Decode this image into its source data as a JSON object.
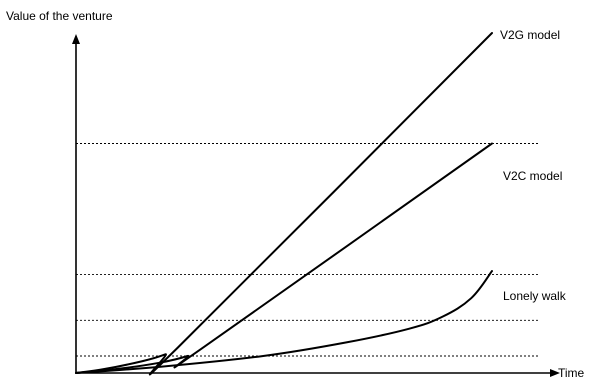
{
  "chart_data": {
    "type": "line",
    "title": "",
    "ylabel": "Value of the venture",
    "xlabel": "Time",
    "colors": {
      "line": "#000000",
      "grid": "#000000",
      "background": "#ffffff"
    },
    "reference_lines": [
      {
        "style": "dotted",
        "y": 0.05
      },
      {
        "style": "dotted",
        "y": 0.155
      },
      {
        "style": "dotted",
        "y": 0.29
      },
      {
        "style": "dotted",
        "y": 0.675
      }
    ],
    "series": [
      {
        "name": "V2G model",
        "label": "V2G model",
        "points": [
          [
            0,
            0
          ],
          [
            0.07,
            0.012
          ],
          [
            0.16,
            0.035
          ],
          [
            0.215,
            0.055
          ],
          [
            0.245,
            0.075
          ],
          [
            1.0,
            1.0
          ]
        ]
      },
      {
        "name": "V2C model",
        "label": "V2C model",
        "points": [
          [
            0,
            0
          ],
          [
            0.1,
            0.012
          ],
          [
            0.2,
            0.03
          ],
          [
            0.268,
            0.05
          ],
          [
            0.3,
            0.07
          ],
          [
            1.0,
            0.675
          ]
        ]
      },
      {
        "name": "Lonely walk",
        "label": "Lonely walk",
        "points": [
          [
            0,
            0
          ],
          [
            0.2,
            0.018
          ],
          [
            0.45,
            0.05
          ],
          [
            0.65,
            0.09
          ],
          [
            0.8,
            0.13
          ],
          [
            0.88,
            0.165
          ],
          [
            0.95,
            0.22
          ],
          [
            1.0,
            0.3
          ]
        ]
      }
    ]
  }
}
